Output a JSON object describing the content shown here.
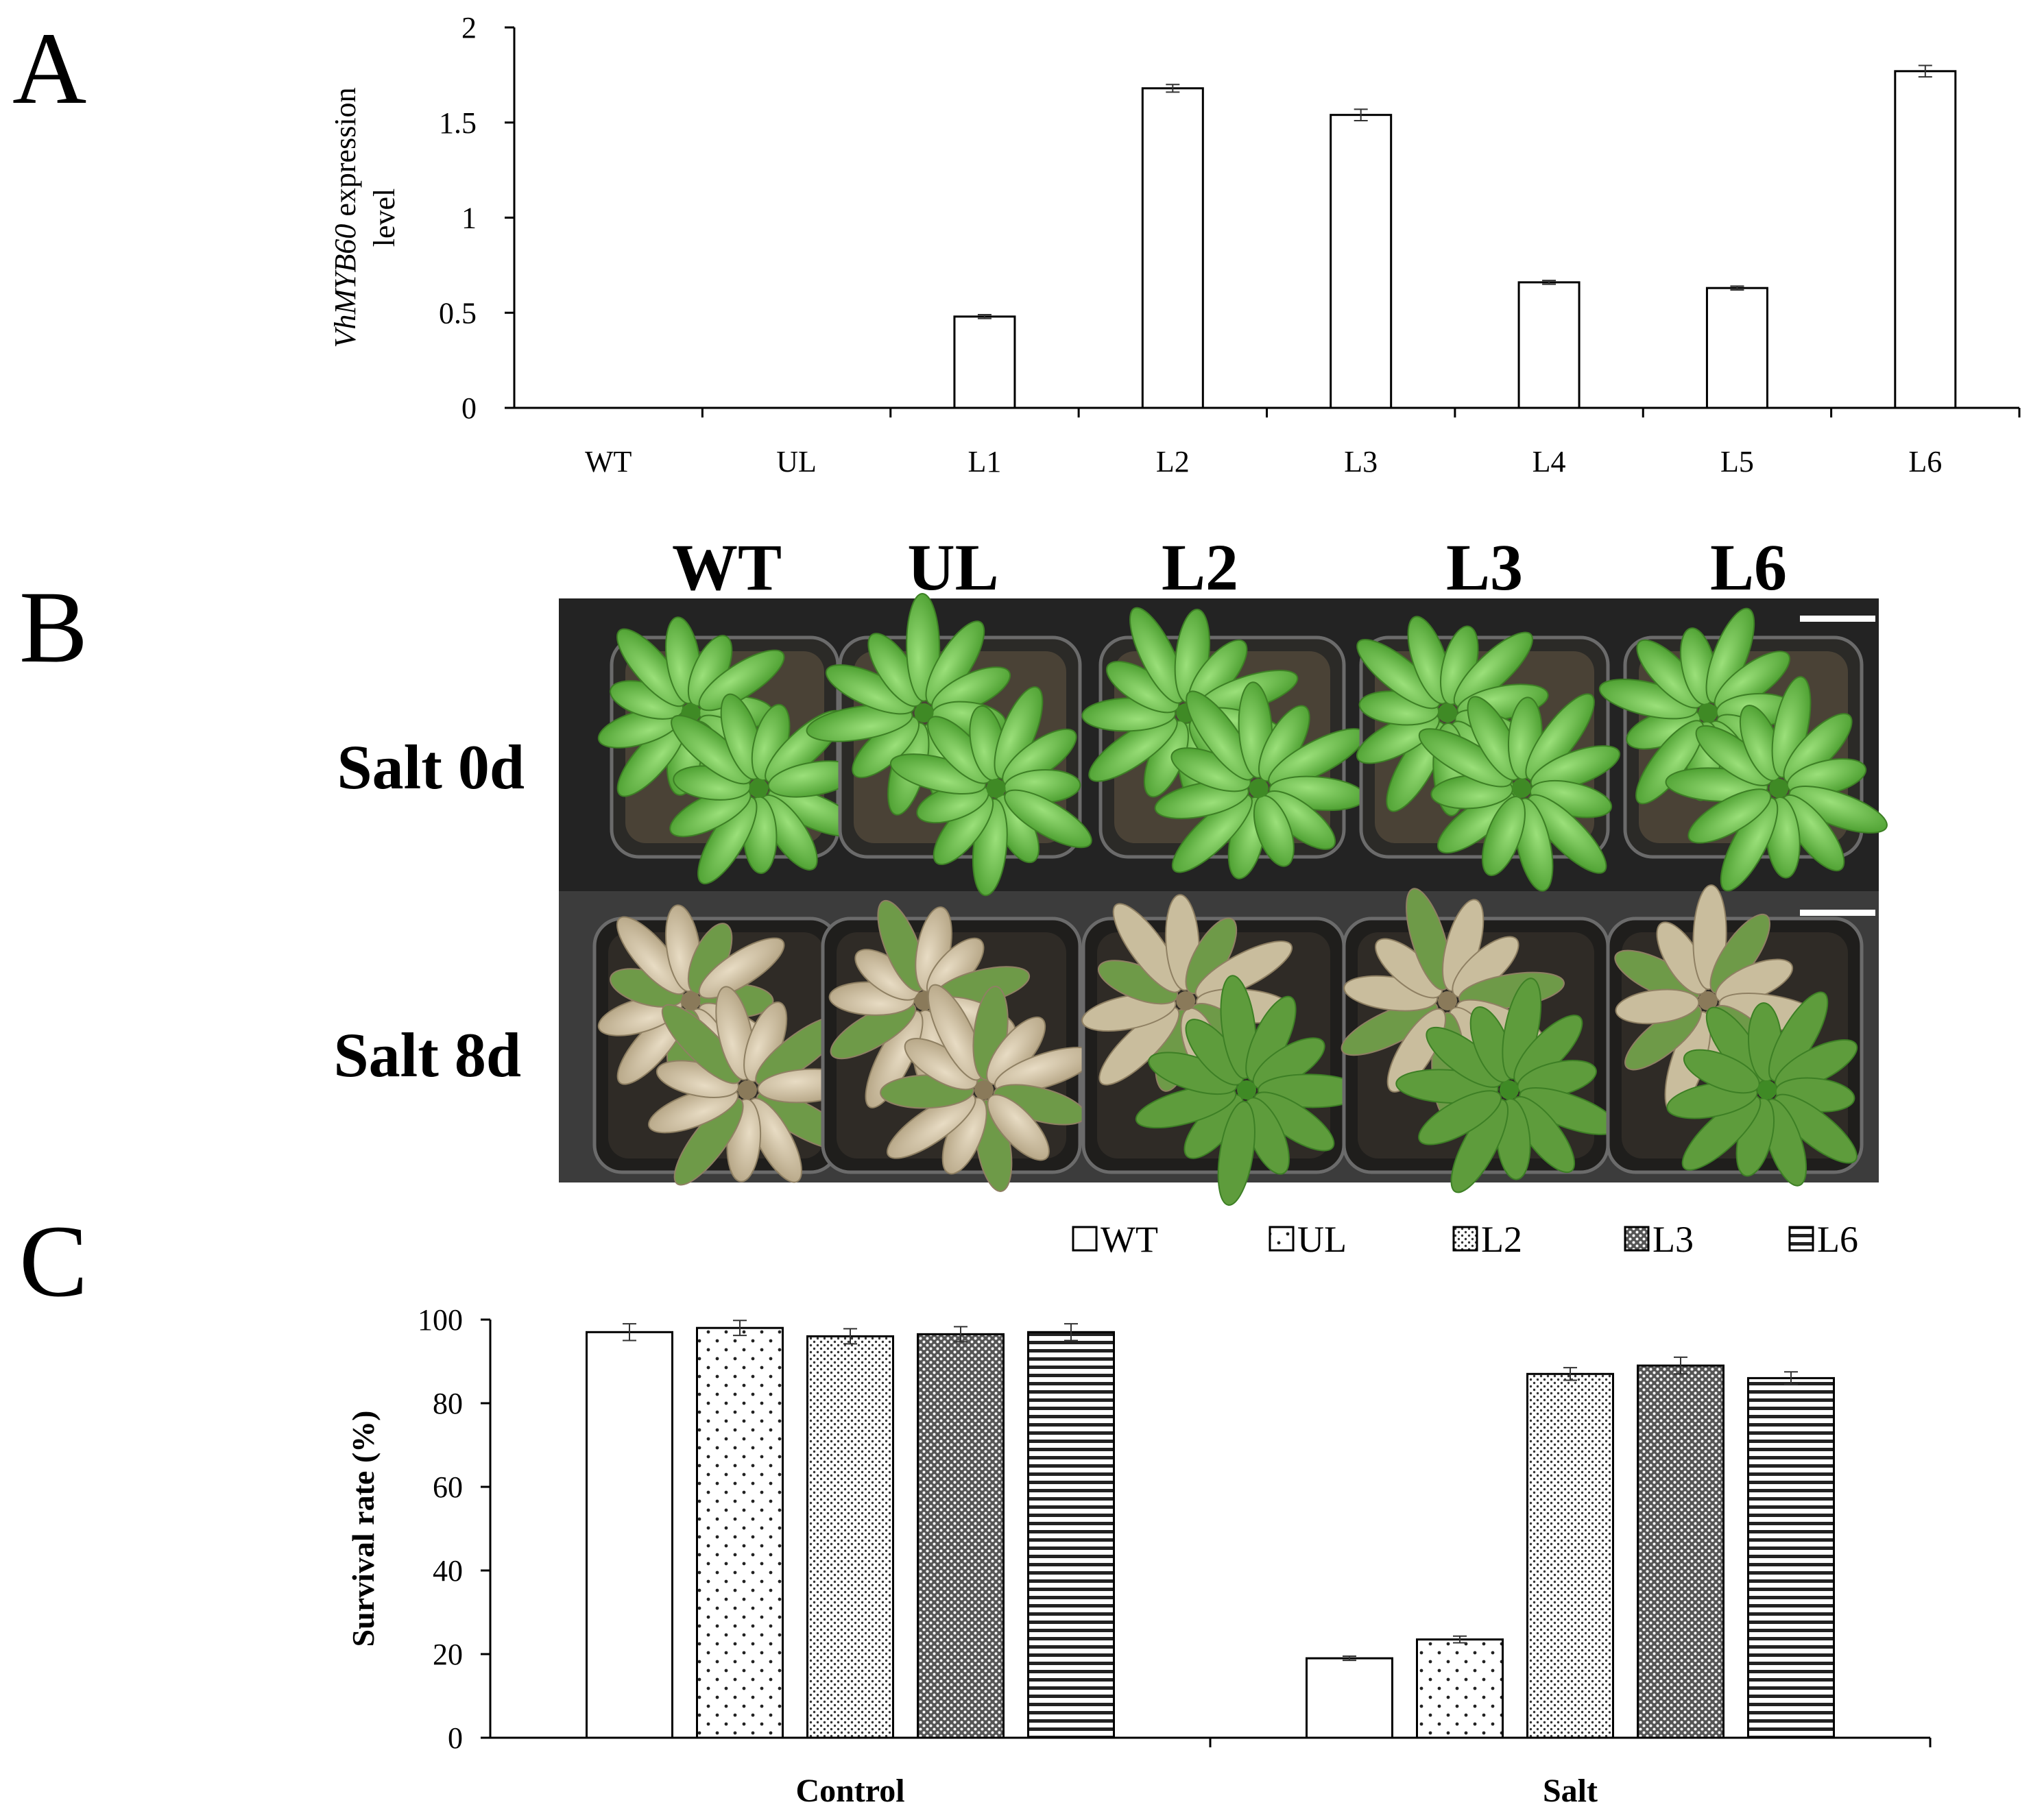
{
  "panels": {
    "a": "A",
    "b": "B",
    "c": "C"
  },
  "chart_data": [
    {
      "type": "bar",
      "panel": "A",
      "categories": [
        "WT",
        "UL",
        "L1",
        "L2",
        "L3",
        "L4",
        "L5",
        "L6"
      ],
      "values": [
        0,
        0,
        0.48,
        1.68,
        1.54,
        0.66,
        0.63,
        1.77
      ],
      "errors": [
        0,
        0,
        0.01,
        0.02,
        0.03,
        0.01,
        0.01,
        0.03
      ],
      "ylabel_italic": "VhMYB60",
      "ylabel_rest": " expression",
      "ylabel_line2": "level",
      "ylim": [
        0,
        2
      ],
      "yticks": [
        0,
        0.5,
        1,
        1.5,
        2
      ],
      "ytick_labels": [
        "0",
        "0.5",
        "1",
        "1.5",
        "2"
      ],
      "bar_fill": "#ffffff",
      "grid": false
    },
    {
      "type": "bar",
      "panel": "C",
      "categories": [
        "Control",
        "Salt"
      ],
      "series": [
        {
          "name": "WT",
          "pattern": "solid",
          "values": [
            97,
            19
          ],
          "errors": [
            2,
            0.5
          ]
        },
        {
          "name": "UL",
          "pattern": "dots",
          "values": [
            98,
            23.5
          ],
          "errors": [
            1.8,
            0.8
          ]
        },
        {
          "name": "L2",
          "pattern": "fine-dots",
          "values": [
            96,
            87
          ],
          "errors": [
            1.8,
            1.5
          ]
        },
        {
          "name": "L3",
          "pattern": "dense-dots",
          "values": [
            96.5,
            89
          ],
          "errors": [
            1.8,
            2
          ]
        },
        {
          "name": "L6",
          "pattern": "horizontal-lines",
          "values": [
            97,
            86
          ],
          "errors": [
            2,
            1.5
          ]
        }
      ],
      "ylabel": "Survival rate (%)",
      "ylim": [
        0,
        100
      ],
      "yticks": [
        0,
        20,
        40,
        60,
        80,
        100
      ],
      "ytick_labels": [
        "0",
        "20",
        "40",
        "60",
        "80",
        "100"
      ],
      "legend_position": "top",
      "grid": false
    }
  ],
  "photo": {
    "columns": [
      "WT",
      "UL",
      "L2",
      "L3",
      "L6"
    ],
    "rows": [
      "Salt 0d",
      "Salt 8d"
    ]
  }
}
